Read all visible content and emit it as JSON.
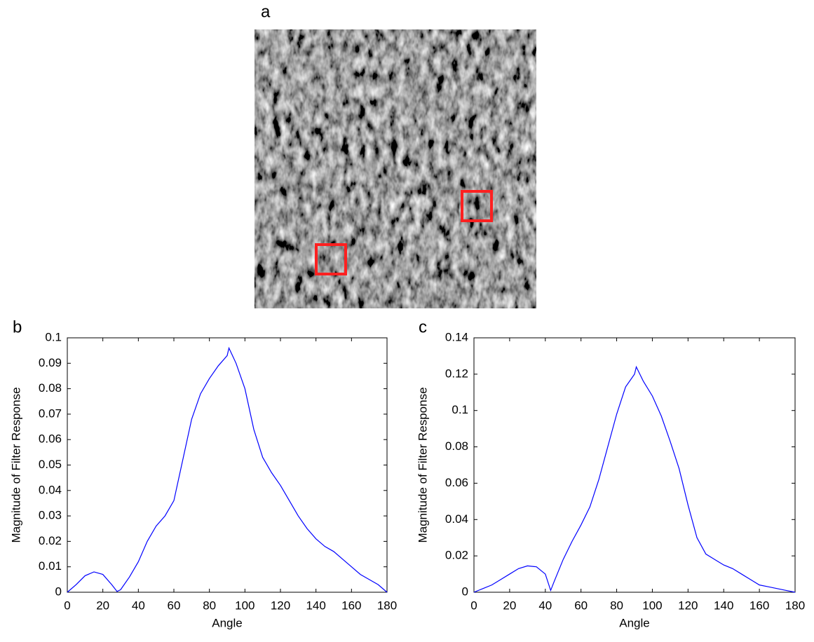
{
  "image_panel": {
    "label": "a"
  },
  "chart_data": [
    {
      "type": "line",
      "panel_label": "b",
      "xlabel": "Angle",
      "ylabel": "Magnitude of Filter Response",
      "color": "#0000ff",
      "x": [
        0,
        5,
        10,
        15,
        20,
        25,
        28,
        30,
        35,
        40,
        45,
        50,
        55,
        60,
        65,
        70,
        75,
        80,
        85,
        90,
        91,
        95,
        100,
        105,
        110,
        115,
        120,
        125,
        130,
        135,
        140,
        145,
        150,
        155,
        160,
        165,
        170,
        175,
        180
      ],
      "values": [
        0,
        0.003,
        0.0065,
        0.008,
        0.007,
        0.003,
        0.0003,
        0.001,
        0.006,
        0.012,
        0.02,
        0.026,
        0.03,
        0.036,
        0.052,
        0.068,
        0.078,
        0.084,
        0.089,
        0.093,
        0.096,
        0.09,
        0.08,
        0.064,
        0.053,
        0.047,
        0.042,
        0.036,
        0.03,
        0.025,
        0.021,
        0.018,
        0.016,
        0.013,
        0.01,
        0.007,
        0.005,
        0.003,
        0
      ],
      "xlim": [
        0,
        180
      ],
      "xticks": [
        0,
        20,
        40,
        60,
        80,
        100,
        120,
        140,
        160,
        180
      ],
      "ylim": [
        0,
        0.1
      ],
      "yticks": [
        0,
        0.01,
        0.02,
        0.03,
        0.04,
        0.05,
        0.06,
        0.07,
        0.08,
        0.09,
        0.1
      ]
    },
    {
      "type": "line",
      "panel_label": "c",
      "xlabel": "Angle",
      "ylabel": "Magnitude of Filter Response",
      "color": "#0000ff",
      "x": [
        0,
        5,
        10,
        15,
        20,
        25,
        30,
        35,
        40,
        43,
        45,
        50,
        55,
        60,
        65,
        70,
        75,
        80,
        85,
        90,
        91,
        95,
        100,
        105,
        110,
        115,
        120,
        125,
        130,
        135,
        140,
        145,
        150,
        155,
        160,
        165,
        170,
        175,
        180
      ],
      "values": [
        0,
        0.002,
        0.004,
        0.007,
        0.01,
        0.013,
        0.0145,
        0.014,
        0.01,
        0.001,
        0.006,
        0.018,
        0.028,
        0.037,
        0.047,
        0.062,
        0.08,
        0.098,
        0.113,
        0.12,
        0.124,
        0.116,
        0.108,
        0.097,
        0.083,
        0.068,
        0.048,
        0.03,
        0.021,
        0.018,
        0.015,
        0.013,
        0.01,
        0.007,
        0.004,
        0.003,
        0.002,
        0.001,
        0
      ],
      "xlim": [
        0,
        180
      ],
      "xticks": [
        0,
        20,
        40,
        60,
        80,
        100,
        120,
        140,
        160,
        180
      ],
      "ylim": [
        0,
        0.14
      ],
      "yticks": [
        0,
        0.02,
        0.04,
        0.06,
        0.08,
        0.1,
        0.12,
        0.14
      ]
    }
  ]
}
